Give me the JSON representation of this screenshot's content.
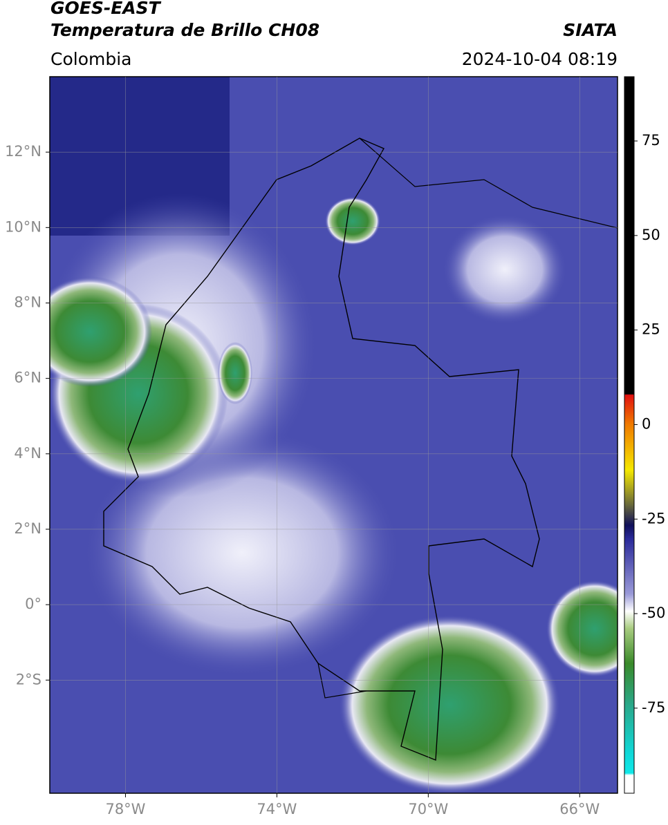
{
  "header": {
    "satellite": "GOES-EAST",
    "product": "Temperatura de Brillo CH08",
    "region": "Colombia",
    "source": "SIATA",
    "timestamp": "2024-10-04 08:19"
  },
  "map": {
    "xlim": [
      -80,
      -65
    ],
    "ylim": [
      -5,
      14
    ],
    "xticks": [
      {
        "value": -78,
        "label": "78°W"
      },
      {
        "value": -74,
        "label": "74°W"
      },
      {
        "value": -70,
        "label": "70°W"
      },
      {
        "value": -66,
        "label": "66°W"
      }
    ],
    "yticks": [
      {
        "value": 12,
        "label": "12°N"
      },
      {
        "value": 10,
        "label": "10°N"
      },
      {
        "value": 8,
        "label": "8°N"
      },
      {
        "value": 6,
        "label": "6°N"
      },
      {
        "value": 4,
        "label": "4°N"
      },
      {
        "value": 2,
        "label": "2°N"
      },
      {
        "value": 0,
        "label": "0°"
      },
      {
        "value": -2,
        "label": "2°S"
      }
    ],
    "grid": true
  },
  "colorbar": {
    "lim": [
      -97.5,
      92
    ],
    "ticks": [
      75,
      50,
      25,
      0,
      -25,
      -50,
      -75
    ]
  }
}
